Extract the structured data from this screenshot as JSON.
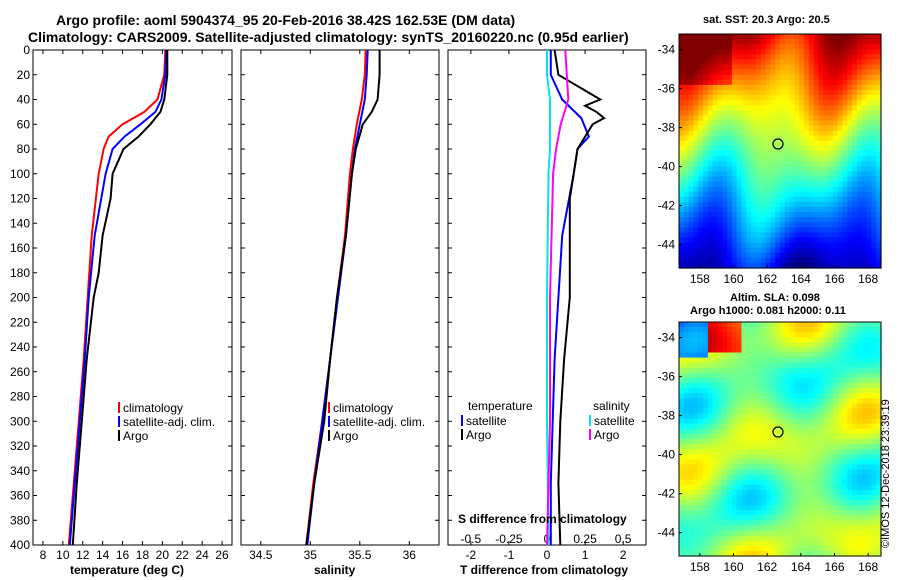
{
  "title_line1": "Argo profile: aoml 5904374_95 20-Feb-2016 38.42S 162.53E (DM data)",
  "title_line2": "Climatology: CARS2009. Satellite-adjusted climatology: synTS_20160220.nc (0.95d earlier)",
  "credit": "©IMOS 12-Dec-2018 23:39:19",
  "colors": {
    "climatology": "#ff0000",
    "satellite": "#0000ff",
    "argo": "#000000",
    "sat_s": "#00e5ee",
    "argo_s": "#ff00ff"
  },
  "chart_data": [
    {
      "type": "line",
      "name": "temperature",
      "xlabel": "temperature (deg C)",
      "ylabel": "depth",
      "xlim": [
        7,
        27
      ],
      "ylim": [
        0,
        400
      ],
      "xticks": [
        8,
        10,
        12,
        14,
        16,
        18,
        20,
        22,
        24,
        26
      ],
      "yticks": [
        0,
        20,
        40,
        60,
        80,
        100,
        120,
        140,
        160,
        180,
        200,
        220,
        240,
        260,
        280,
        300,
        320,
        340,
        360,
        380,
        400
      ],
      "legend": [
        "climatology",
        "satellite-adj. clim.",
        "Argo"
      ],
      "series": [
        {
          "name": "climatology",
          "depth": [
            0,
            20,
            40,
            50,
            60,
            70,
            80,
            100,
            150,
            200,
            250,
            300,
            350,
            400
          ],
          "values": [
            20.3,
            20.2,
            19.5,
            18.2,
            16.0,
            14.6,
            14.1,
            13.6,
            12.9,
            12.5,
            12.1,
            11.6,
            11.1,
            10.6
          ]
        },
        {
          "name": "satellite-adj. clim.",
          "depth": [
            0,
            20,
            40,
            50,
            60,
            70,
            80,
            100,
            150,
            200,
            250,
            300,
            350,
            400
          ],
          "values": [
            20.4,
            20.3,
            19.9,
            19.3,
            17.8,
            16.2,
            15.0,
            14.3,
            13.2,
            12.6,
            12.2,
            11.7,
            11.2,
            10.7
          ]
        },
        {
          "name": "Argo",
          "depth": [
            0,
            20,
            40,
            50,
            60,
            70,
            80,
            100,
            120,
            150,
            180,
            200,
            250,
            300,
            350,
            400
          ],
          "values": [
            20.5,
            20.5,
            20.2,
            19.8,
            18.8,
            17.6,
            16.1,
            15.0,
            14.8,
            14.0,
            13.6,
            13.1,
            12.4,
            11.9,
            11.4,
            11.0
          ]
        }
      ]
    },
    {
      "type": "line",
      "name": "salinity",
      "xlabel": "salinity",
      "ylabel": "depth",
      "xlim": [
        34.3,
        36.3
      ],
      "ylim": [
        0,
        400
      ],
      "xticks": [
        34.5,
        35,
        35.5,
        36
      ],
      "legend": [
        "climatology",
        "satellite-adj. clim.",
        "Argo"
      ],
      "series": [
        {
          "name": "climatology",
          "depth": [
            0,
            20,
            40,
            60,
            80,
            100,
            150,
            200,
            250,
            300,
            350,
            400
          ],
          "values": [
            35.56,
            35.55,
            35.52,
            35.47,
            35.43,
            35.4,
            35.35,
            35.27,
            35.2,
            35.12,
            35.03,
            34.96
          ]
        },
        {
          "name": "satellite-adj. clim.",
          "depth": [
            0,
            20,
            40,
            60,
            80,
            100,
            150,
            200,
            250,
            300,
            350,
            400
          ],
          "values": [
            35.58,
            35.57,
            35.55,
            35.5,
            35.45,
            35.42,
            35.36,
            35.28,
            35.2,
            35.12,
            35.04,
            34.97
          ]
        },
        {
          "name": "Argo",
          "depth": [
            0,
            20,
            40,
            50,
            60,
            80,
            100,
            150,
            200,
            250,
            300,
            350,
            400
          ],
          "values": [
            35.7,
            35.7,
            35.68,
            35.62,
            35.53,
            35.46,
            35.42,
            35.36,
            35.27,
            35.2,
            35.14,
            35.04,
            34.96
          ]
        }
      ]
    },
    {
      "type": "line",
      "name": "difference",
      "xlabel": "T difference from climatology",
      "xlabel_top": "S difference from climatology",
      "xlim": [
        -2.6,
        2.6
      ],
      "ylim": [
        0,
        400
      ],
      "xticks": [
        -2,
        -1,
        0,
        1,
        2
      ],
      "xticks_s": [
        -0.5,
        -0.25,
        0,
        0.25,
        0.5
      ],
      "legend_t_title": "temperature",
      "legend_s_title": "salinity",
      "legend": [
        "satellite",
        "Argo",
        "satellite",
        "Argo"
      ],
      "series": [
        {
          "name": "T satellite",
          "depth": [
            0,
            20,
            40,
            55,
            70,
            80,
            100,
            150,
            200,
            250,
            300,
            350,
            400
          ],
          "values": [
            0.1,
            0.1,
            0.4,
            0.9,
            1.1,
            0.8,
            0.7,
            0.4,
            0.3,
            0.2,
            0.15,
            0.1,
            0.1
          ]
        },
        {
          "name": "T Argo",
          "depth": [
            0,
            20,
            40,
            45,
            50,
            55,
            60,
            70,
            80,
            100,
            120,
            150,
            200,
            250,
            300,
            350,
            400
          ],
          "values": [
            0.2,
            0.3,
            1.4,
            1.0,
            1.3,
            1.5,
            1.2,
            1.0,
            0.8,
            0.7,
            0.6,
            0.6,
            0.6,
            0.45,
            0.35,
            0.3,
            0.35
          ]
        },
        {
          "name": "S satellite",
          "depth": [
            0,
            20,
            40,
            60,
            80,
            100,
            200,
            300,
            400
          ],
          "values": [
            0.0,
            0.0,
            0.02,
            0.02,
            0.02,
            0.01,
            0.0,
            0.0,
            0.01
          ]
        },
        {
          "name": "S Argo",
          "depth": [
            0,
            20,
            40,
            60,
            80,
            100,
            200,
            300,
            400
          ],
          "values": [
            0.12,
            0.13,
            0.14,
            0.09,
            0.06,
            0.04,
            0.02,
            0.02,
            0.0
          ]
        }
      ]
    }
  ],
  "maps": [
    {
      "name": "sst-map",
      "title": "sat. SST: 20.3 Argo: 20.5",
      "yticks": [
        "-34",
        "-36",
        "-38",
        "-40",
        "-42",
        "-44"
      ],
      "xticks": [
        "158",
        "160",
        "162",
        "164",
        "166",
        "168"
      ]
    },
    {
      "name": "sla-map",
      "title_line1": "Altim. SLA: 0.098",
      "title_line2": "Argo h1000: 0.081 h2000: 0.11",
      "yticks": [
        "-34",
        "-36",
        "-38",
        "-40",
        "-42",
        "-44"
      ],
      "xticks": [
        "158",
        "160",
        "162",
        "164",
        "166",
        "168"
      ]
    }
  ]
}
